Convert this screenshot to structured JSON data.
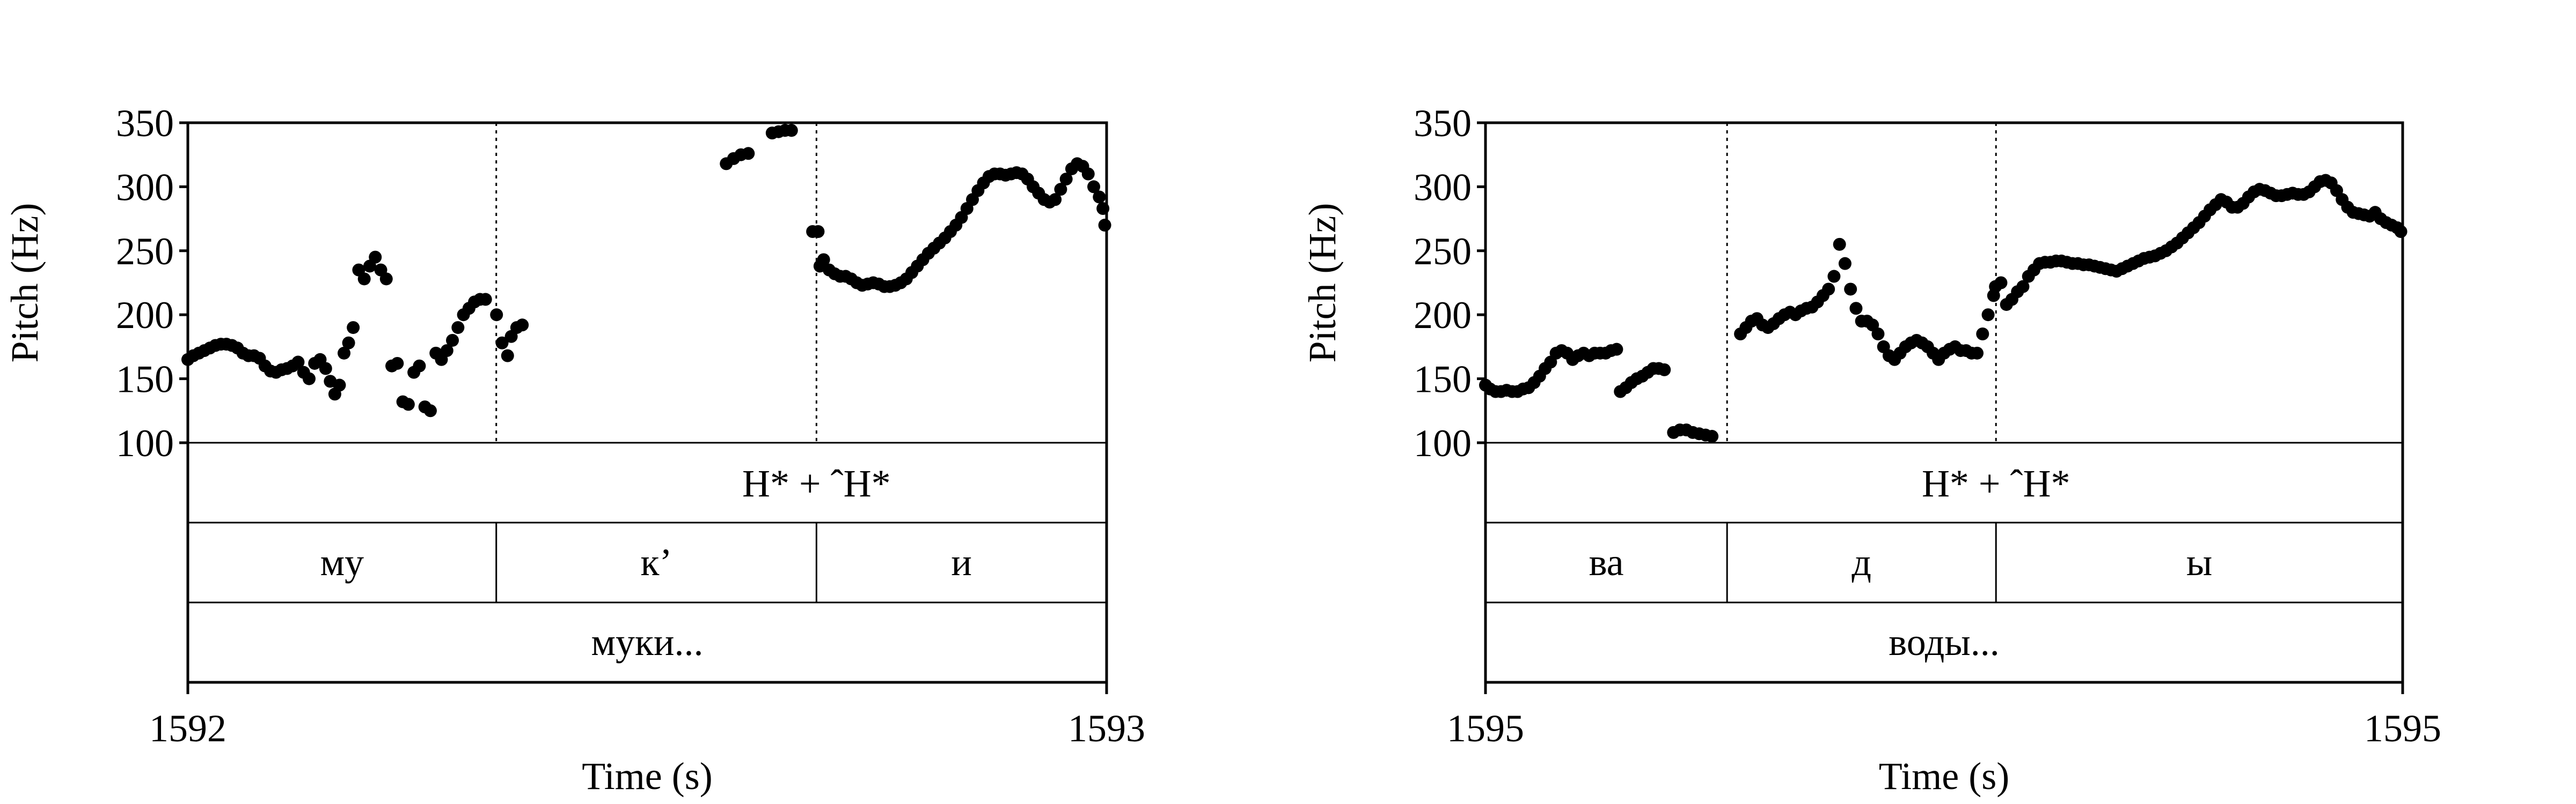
{
  "chart_data": [
    {
      "type": "scatter",
      "ylabel": "Pitch (Hz)",
      "xlabel": "Time (s)",
      "ylim": [
        100,
        350
      ],
      "yticks": [
        "100",
        "150",
        "200",
        "250",
        "300",
        "350"
      ],
      "xlim": [
        0,
        1
      ],
      "xticks": [
        {
          "label": "1592",
          "x": 0
        },
        {
          "label": "1593",
          "x": 1
        }
      ],
      "boundaries": [
        0.3357,
        0.6842
      ],
      "tone_label": "H* + ˆH*",
      "syllables": [
        {
          "label": "му",
          "start": 0,
          "end": 0.3357
        },
        {
          "label": "к’",
          "start": 0.3357,
          "end": 0.6842
        },
        {
          "label": "и",
          "start": 0.6842,
          "end": 1
        }
      ],
      "word": "муки...",
      "points": [
        [
          0.0,
          165
        ],
        [
          0.006,
          168
        ],
        [
          0.012,
          170
        ],
        [
          0.018,
          172
        ],
        [
          0.024,
          174
        ],
        [
          0.03,
          176
        ],
        [
          0.036,
          177
        ],
        [
          0.042,
          177
        ],
        [
          0.048,
          176
        ],
        [
          0.054,
          174
        ],
        [
          0.06,
          170
        ],
        [
          0.066,
          168
        ],
        [
          0.072,
          168
        ],
        [
          0.078,
          166
        ],
        [
          0.084,
          160
        ],
        [
          0.09,
          156
        ],
        [
          0.096,
          155
        ],
        [
          0.102,
          157
        ],
        [
          0.108,
          158
        ],
        [
          0.114,
          160
        ],
        [
          0.12,
          163
        ],
        [
          0.126,
          155
        ],
        [
          0.132,
          150
        ],
        [
          0.138,
          162
        ],
        [
          0.144,
          165
        ],
        [
          0.15,
          158
        ],
        [
          0.155,
          148
        ],
        [
          0.16,
          138
        ],
        [
          0.165,
          145
        ],
        [
          0.17,
          170
        ],
        [
          0.175,
          178
        ],
        [
          0.18,
          190
        ],
        [
          0.186,
          235
        ],
        [
          0.192,
          228
        ],
        [
          0.198,
          238
        ],
        [
          0.204,
          245
        ],
        [
          0.21,
          235
        ],
        [
          0.216,
          228
        ],
        [
          0.222,
          160
        ],
        [
          0.228,
          162
        ],
        [
          0.234,
          132
        ],
        [
          0.24,
          130
        ],
        [
          0.246,
          155
        ],
        [
          0.252,
          160
        ],
        [
          0.258,
          128
        ],
        [
          0.264,
          125
        ],
        [
          0.27,
          170
        ],
        [
          0.276,
          165
        ],
        [
          0.282,
          172
        ],
        [
          0.288,
          180
        ],
        [
          0.294,
          190
        ],
        [
          0.3,
          200
        ],
        [
          0.306,
          205
        ],
        [
          0.312,
          210
        ],
        [
          0.318,
          212
        ],
        [
          0.324,
          212
        ],
        [
          0.336,
          200
        ],
        [
          0.342,
          178
        ],
        [
          0.348,
          168
        ],
        [
          0.352,
          183
        ],
        [
          0.358,
          190
        ],
        [
          0.364,
          192
        ],
        [
          0.586,
          318
        ],
        [
          0.594,
          322
        ],
        [
          0.602,
          325
        ],
        [
          0.61,
          326
        ],
        [
          0.636,
          342
        ],
        [
          0.643,
          343
        ],
        [
          0.65,
          344
        ],
        [
          0.657,
          344
        ],
        [
          0.68,
          265
        ],
        [
          0.686,
          265
        ],
        [
          0.688,
          238
        ],
        [
          0.692,
          243
        ],
        [
          0.698,
          235
        ],
        [
          0.704,
          232
        ],
        [
          0.71,
          230
        ],
        [
          0.716,
          230
        ],
        [
          0.722,
          228
        ],
        [
          0.728,
          225
        ],
        [
          0.734,
          223
        ],
        [
          0.74,
          224
        ],
        [
          0.746,
          225
        ],
        [
          0.752,
          224
        ],
        [
          0.758,
          222
        ],
        [
          0.764,
          222
        ],
        [
          0.77,
          223
        ],
        [
          0.776,
          225
        ],
        [
          0.782,
          228
        ],
        [
          0.788,
          233
        ],
        [
          0.794,
          238
        ],
        [
          0.8,
          243
        ],
        [
          0.806,
          248
        ],
        [
          0.812,
          252
        ],
        [
          0.818,
          256
        ],
        [
          0.824,
          260
        ],
        [
          0.83,
          265
        ],
        [
          0.836,
          270
        ],
        [
          0.842,
          276
        ],
        [
          0.848,
          283
        ],
        [
          0.854,
          290
        ],
        [
          0.86,
          297
        ],
        [
          0.866,
          303
        ],
        [
          0.872,
          308
        ],
        [
          0.878,
          310
        ],
        [
          0.884,
          310
        ],
        [
          0.89,
          309
        ],
        [
          0.896,
          310
        ],
        [
          0.902,
          311
        ],
        [
          0.908,
          310
        ],
        [
          0.914,
          306
        ],
        [
          0.92,
          300
        ],
        [
          0.926,
          295
        ],
        [
          0.932,
          290
        ],
        [
          0.938,
          288
        ],
        [
          0.944,
          290
        ],
        [
          0.95,
          298
        ],
        [
          0.956,
          306
        ],
        [
          0.962,
          314
        ],
        [
          0.968,
          318
        ],
        [
          0.974,
          316
        ],
        [
          0.98,
          310
        ],
        [
          0.986,
          300
        ],
        [
          0.992,
          292
        ],
        [
          0.996,
          283
        ],
        [
          0.998,
          270
        ]
      ]
    },
    {
      "type": "scatter",
      "ylabel": "Pitch (Hz)",
      "xlabel": "Time (s)",
      "ylim": [
        100,
        350
      ],
      "yticks": [
        "100",
        "150",
        "200",
        "250",
        "300",
        "350"
      ],
      "xlim": [
        0,
        1
      ],
      "xticks": [
        {
          "label": "1595",
          "x": 0
        },
        {
          "label": "1595",
          "x": 1
        }
      ],
      "boundaries": [
        0.2634,
        0.5566
      ],
      "tone_label": "H* + ˆH*",
      "syllables": [
        {
          "label": "ва",
          "start": 0,
          "end": 0.2634
        },
        {
          "label": "д",
          "start": 0.2634,
          "end": 0.5566
        },
        {
          "label": "ы",
          "start": 0.5566,
          "end": 1
        }
      ],
      "word": "воды...",
      "points": [
        [
          0.0,
          145
        ],
        [
          0.005,
          142
        ],
        [
          0.011,
          140
        ],
        [
          0.017,
          140
        ],
        [
          0.023,
          141
        ],
        [
          0.029,
          140
        ],
        [
          0.035,
          140
        ],
        [
          0.041,
          142
        ],
        [
          0.047,
          143
        ],
        [
          0.053,
          147
        ],
        [
          0.059,
          152
        ],
        [
          0.065,
          158
        ],
        [
          0.071,
          163
        ],
        [
          0.077,
          170
        ],
        [
          0.083,
          172
        ],
        [
          0.089,
          170
        ],
        [
          0.095,
          165
        ],
        [
          0.101,
          168
        ],
        [
          0.107,
          170
        ],
        [
          0.113,
          168
        ],
        [
          0.119,
          170
        ],
        [
          0.125,
          170
        ],
        [
          0.131,
          170
        ],
        [
          0.137,
          172
        ],
        [
          0.143,
          173
        ],
        [
          0.147,
          140
        ],
        [
          0.153,
          143
        ],
        [
          0.159,
          147
        ],
        [
          0.165,
          150
        ],
        [
          0.171,
          152
        ],
        [
          0.177,
          155
        ],
        [
          0.183,
          158
        ],
        [
          0.189,
          158
        ],
        [
          0.195,
          157
        ],
        [
          0.205,
          108
        ],
        [
          0.212,
          110
        ],
        [
          0.219,
          110
        ],
        [
          0.226,
          108
        ],
        [
          0.233,
          107
        ],
        [
          0.24,
          106
        ],
        [
          0.247,
          105
        ],
        [
          0.278,
          185
        ],
        [
          0.284,
          190
        ],
        [
          0.29,
          195
        ],
        [
          0.296,
          197
        ],
        [
          0.302,
          192
        ],
        [
          0.308,
          190
        ],
        [
          0.314,
          193
        ],
        [
          0.32,
          197
        ],
        [
          0.326,
          200
        ],
        [
          0.332,
          202
        ],
        [
          0.338,
          200
        ],
        [
          0.344,
          203
        ],
        [
          0.35,
          205
        ],
        [
          0.356,
          206
        ],
        [
          0.362,
          210
        ],
        [
          0.368,
          215
        ],
        [
          0.374,
          220
        ],
        [
          0.38,
          230
        ],
        [
          0.386,
          255
        ],
        [
          0.392,
          240
        ],
        [
          0.398,
          220
        ],
        [
          0.404,
          205
        ],
        [
          0.41,
          195
        ],
        [
          0.416,
          195
        ],
        [
          0.422,
          192
        ],
        [
          0.428,
          185
        ],
        [
          0.434,
          175
        ],
        [
          0.44,
          168
        ],
        [
          0.446,
          165
        ],
        [
          0.452,
          170
        ],
        [
          0.458,
          175
        ],
        [
          0.464,
          178
        ],
        [
          0.47,
          180
        ],
        [
          0.476,
          178
        ],
        [
          0.482,
          175
        ],
        [
          0.488,
          170
        ],
        [
          0.494,
          165
        ],
        [
          0.5,
          170
        ],
        [
          0.506,
          173
        ],
        [
          0.512,
          175
        ],
        [
          0.518,
          172
        ],
        [
          0.524,
          172
        ],
        [
          0.53,
          170
        ],
        [
          0.536,
          170
        ],
        [
          0.542,
          185
        ],
        [
          0.548,
          200
        ],
        [
          0.554,
          215
        ],
        [
          0.556,
          222
        ],
        [
          0.562,
          225
        ],
        [
          0.568,
          208
        ],
        [
          0.574,
          212
        ],
        [
          0.58,
          218
        ],
        [
          0.586,
          222
        ],
        [
          0.592,
          230
        ],
        [
          0.598,
          235
        ],
        [
          0.604,
          240
        ],
        [
          0.61,
          241
        ],
        [
          0.616,
          241
        ],
        [
          0.622,
          242
        ],
        [
          0.628,
          242
        ],
        [
          0.634,
          241
        ],
        [
          0.64,
          240
        ],
        [
          0.646,
          240
        ],
        [
          0.652,
          239
        ],
        [
          0.658,
          239
        ],
        [
          0.664,
          238
        ],
        [
          0.67,
          237
        ],
        [
          0.676,
          236
        ],
        [
          0.682,
          235
        ],
        [
          0.688,
          234
        ],
        [
          0.694,
          236
        ],
        [
          0.7,
          238
        ],
        [
          0.706,
          240
        ],
        [
          0.712,
          242
        ],
        [
          0.718,
          244
        ],
        [
          0.724,
          245
        ],
        [
          0.73,
          246
        ],
        [
          0.736,
          248
        ],
        [
          0.742,
          250
        ],
        [
          0.748,
          253
        ],
        [
          0.754,
          256
        ],
        [
          0.76,
          260
        ],
        [
          0.766,
          264
        ],
        [
          0.772,
          268
        ],
        [
          0.778,
          272
        ],
        [
          0.784,
          277
        ],
        [
          0.79,
          282
        ],
        [
          0.796,
          286
        ],
        [
          0.802,
          290
        ],
        [
          0.808,
          288
        ],
        [
          0.814,
          284
        ],
        [
          0.82,
          284
        ],
        [
          0.826,
          287
        ],
        [
          0.832,
          292
        ],
        [
          0.838,
          296
        ],
        [
          0.844,
          298
        ],
        [
          0.85,
          297
        ],
        [
          0.856,
          295
        ],
        [
          0.862,
          293
        ],
        [
          0.868,
          293
        ],
        [
          0.874,
          294
        ],
        [
          0.88,
          295
        ],
        [
          0.886,
          294
        ],
        [
          0.892,
          294
        ],
        [
          0.898,
          296
        ],
        [
          0.904,
          300
        ],
        [
          0.91,
          304
        ],
        [
          0.916,
          305
        ],
        [
          0.922,
          303
        ],
        [
          0.928,
          297
        ],
        [
          0.934,
          290
        ],
        [
          0.94,
          284
        ],
        [
          0.946,
          280
        ],
        [
          0.952,
          279
        ],
        [
          0.958,
          278
        ],
        [
          0.964,
          277
        ],
        [
          0.97,
          280
        ],
        [
          0.976,
          275
        ],
        [
          0.982,
          272
        ],
        [
          0.988,
          270
        ],
        [
          0.994,
          268
        ],
        [
          0.998,
          265
        ]
      ]
    }
  ]
}
